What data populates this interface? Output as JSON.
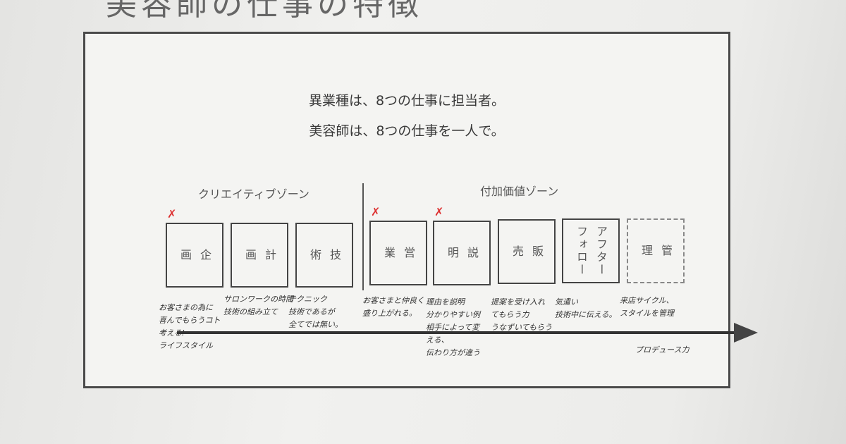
{
  "slide_title": "美容師の仕事の特徴",
  "headings": [
    "異業種は、8つの仕事に担当者。",
    "美容師は、8つの仕事を一人で。"
  ],
  "zones": {
    "creative": "クリエイティブゾーン",
    "value_added": "付加価値ゾーン"
  },
  "boxes": [
    {
      "lines": [
        "企",
        "画"
      ],
      "note": [
        "お客さまの為に",
        "喜んでもらうコト",
        "考える!",
        "ライフスタイル"
      ],
      "marked": true
    },
    {
      "lines": [
        "計",
        "画"
      ],
      "note": [
        "サロンワークの時間",
        "技術の組み立て"
      ],
      "marked": false
    },
    {
      "lines": [
        "技",
        "術"
      ],
      "note": [
        "テクニック",
        "技術であるが",
        "全てでは無い。"
      ],
      "marked": false
    },
    {
      "lines": [
        "営",
        "業"
      ],
      "note": [
        "お客さまと仲良く",
        "盛り上がれる。"
      ],
      "marked": true
    },
    {
      "lines": [
        "説",
        "明"
      ],
      "note": [
        "理由を説明",
        "分かりやすい例",
        "相手によって変",
        "える、",
        "伝わり方が違う"
      ],
      "marked": true
    },
    {
      "lines": [
        "販",
        "売"
      ],
      "note": [
        "提案を受け入れ",
        "てもらう力",
        "うなずいてもらう"
      ],
      "marked": false
    },
    {
      "lines": [
        "アフター",
        "フォロー"
      ],
      "note": [
        "気遣い",
        "技術中に伝える。"
      ],
      "marked": false
    },
    {
      "lines": [
        "管",
        "理"
      ],
      "note": [
        "来店サイクル、",
        "スタイルを管理"
      ],
      "marked": false
    }
  ],
  "arrow_label": "プロデュース力",
  "mark_symbol": "✗",
  "mark_color": "#dd3333"
}
